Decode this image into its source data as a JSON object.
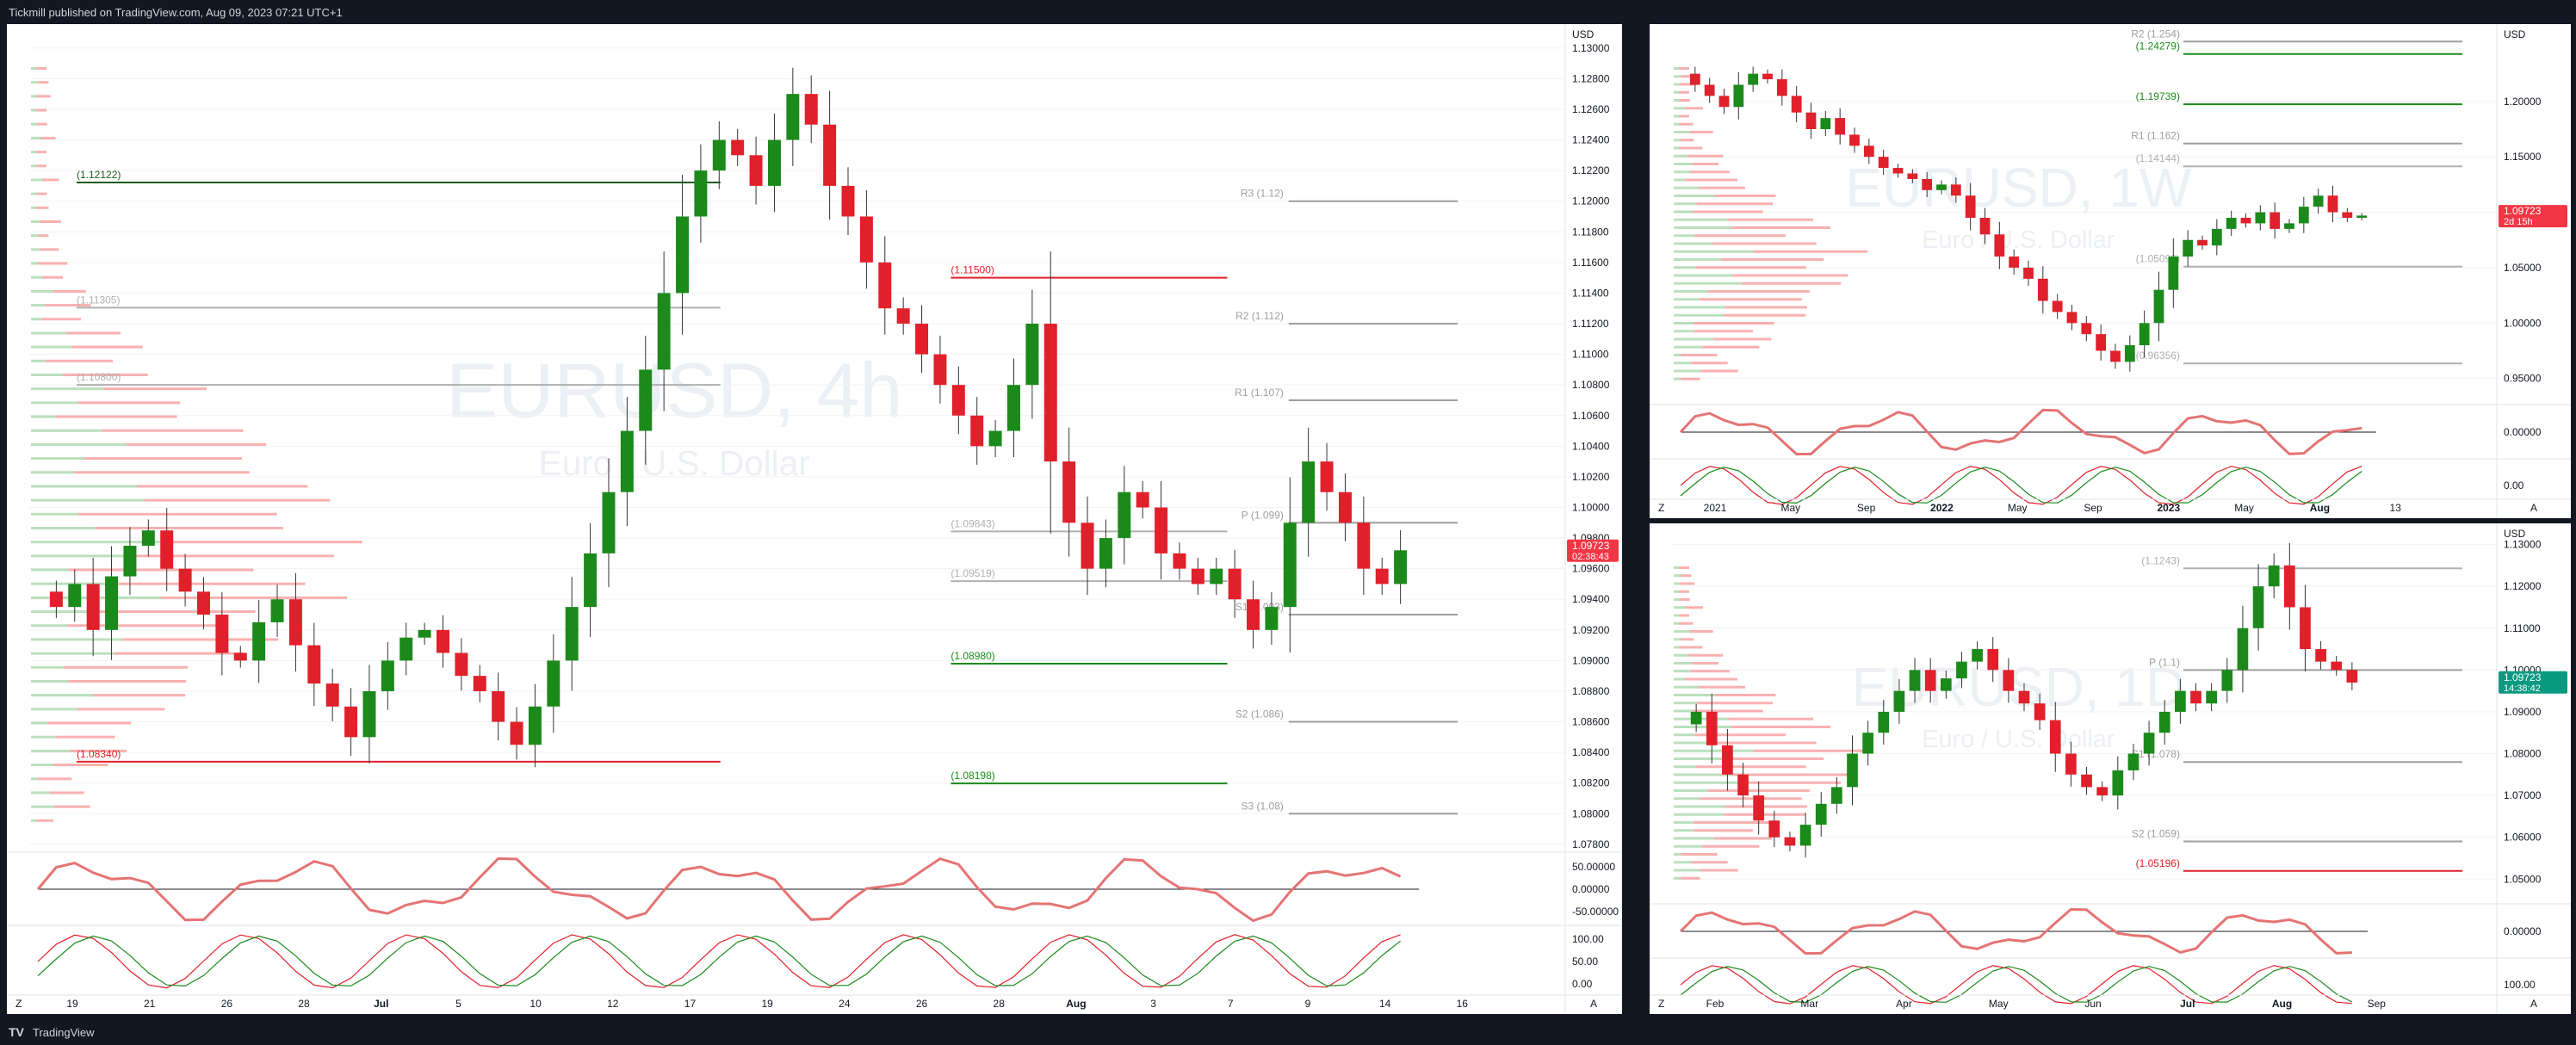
{
  "header": {
    "publisher_line": "Tickmill published on TradingView.com, Aug 09, 2023 07:21 UTC+1"
  },
  "footer": {
    "brand": "TradingView",
    "logo": "tradingview-logo-icon"
  },
  "colors": {
    "up": "#089981",
    "down": "#f23645",
    "candle_up": "#1b8a1b",
    "candle_down": "#e0202a",
    "pivot": "#9e9e9e",
    "accent": "#2962ff"
  },
  "chart_data": [
    {
      "id": "main-4h",
      "type": "candlestick",
      "watermark": {
        "symbol": "EURUSD, 4h",
        "name": "Euro / U.S. Dollar"
      },
      "currency": "USD",
      "last_price": "1.09723",
      "countdown": "02:38:43",
      "y_ticks": [
        "1.13000",
        "1.12800",
        "1.12600",
        "1.12400",
        "1.12200",
        "1.12000",
        "1.11800",
        "1.11600",
        "1.11400",
        "1.11200",
        "1.11000",
        "1.10800",
        "1.10600",
        "1.10400",
        "1.10200",
        "1.10000",
        "1.09800",
        "1.09600",
        "1.09400",
        "1.09200",
        "1.09000",
        "1.08800",
        "1.08600",
        "1.08400",
        "1.08200",
        "1.08000",
        "1.07800"
      ],
      "ylim": [
        1.0776,
        1.131
      ],
      "x_ticks": [
        "19",
        "21",
        "26",
        "28",
        "Jul",
        "5",
        "10",
        "12",
        "17",
        "19",
        "24",
        "26",
        "28",
        "Aug",
        "3",
        "7",
        "9",
        "14",
        "16"
      ],
      "price_path": [
        1.0945,
        1.0935,
        1.095,
        1.092,
        1.0955,
        1.0975,
        1.0985,
        1.096,
        1.0945,
        1.093,
        1.0905,
        1.09,
        1.0925,
        1.094,
        1.091,
        1.0885,
        1.087,
        1.085,
        1.088,
        1.09,
        1.0915,
        1.092,
        1.0905,
        1.089,
        1.088,
        1.086,
        1.0845,
        1.087,
        1.09,
        1.0935,
        1.097,
        1.101,
        1.105,
        1.109,
        1.114,
        1.119,
        1.122,
        1.124,
        1.123,
        1.121,
        1.124,
        1.127,
        1.125,
        1.121,
        1.119,
        1.116,
        1.113,
        1.112,
        1.11,
        1.108,
        1.106,
        1.104,
        1.105,
        1.108,
        1.112,
        1.103,
        1.099,
        1.096,
        1.098,
        1.101,
        1.1,
        1.097,
        1.096,
        1.095,
        1.096,
        1.094,
        1.092,
        1.0935,
        1.099,
        1.103,
        1.101,
        1.099,
        1.096,
        1.095,
        1.0972
      ],
      "levels": [
        {
          "label": "(1.12122)",
          "value": 1.12122,
          "color": "#1b5e20",
          "side": "left"
        },
        {
          "label": "(1.11305)",
          "value": 1.11305,
          "color": "#b0b0b0",
          "side": "left"
        },
        {
          "label": "(1.10800)",
          "value": 1.108,
          "color": "#b0b0b0",
          "side": "left"
        },
        {
          "label": "(1.08340)",
          "value": 1.0834,
          "color": "#e0202a",
          "side": "left"
        },
        {
          "label": "(1.11500)",
          "value": 1.115,
          "color": "#e0202a",
          "side": "mid"
        },
        {
          "label": "(1.09843)",
          "value": 1.09843,
          "color": "#b0b0b0",
          "side": "mid"
        },
        {
          "label": "(1.09519)",
          "value": 1.09519,
          "color": "#b0b0b0",
          "side": "mid"
        },
        {
          "label": "(1.08980)",
          "value": 1.0898,
          "color": "#1b8a1b",
          "side": "mid"
        },
        {
          "label": "(1.08198)",
          "value": 1.08198,
          "color": "#1b8a1b",
          "side": "mid"
        },
        {
          "label": "R3 (1.12)",
          "value": 1.12,
          "color": "#9e9e9e",
          "side": "right"
        },
        {
          "label": "R2 (1.112)",
          "value": 1.112,
          "color": "#9e9e9e",
          "side": "right"
        },
        {
          "label": "R1 (1.107)",
          "value": 1.107,
          "color": "#9e9e9e",
          "side": "right"
        },
        {
          "label": "P (1.099)",
          "value": 1.099,
          "color": "#9e9e9e",
          "side": "right"
        },
        {
          "label": "S1 (1.093)",
          "value": 1.093,
          "color": "#9e9e9e",
          "side": "right"
        },
        {
          "label": "S2 (1.086)",
          "value": 1.086,
          "color": "#9e9e9e",
          "side": "right"
        },
        {
          "label": "S3 (1.08)",
          "value": 1.08,
          "color": "#9e9e9e",
          "side": "right"
        }
      ],
      "osc1_ticks": [
        "50.00000",
        "0.00000",
        "-50.00000"
      ],
      "osc2_ticks": [
        "100.00",
        "50.00",
        "0.00"
      ]
    },
    {
      "id": "weekly",
      "type": "candlestick",
      "watermark": {
        "symbol": "EURUSD, 1W",
        "name": "Euro / U.S. Dollar"
      },
      "currency": "USD",
      "last_price": "1.09723",
      "countdown": "2d 15h",
      "y_ticks": [
        "1.20000",
        "1.15000",
        "1.10000",
        "1.05000",
        "1.00000",
        "0.95000"
      ],
      "ylim": [
        0.928,
        1.262
      ],
      "x_ticks": [
        "2021",
        "May",
        "Sep",
        "2022",
        "May",
        "Sep",
        "2023",
        "May",
        "Aug",
        "13"
      ],
      "price_path": [
        1.225,
        1.215,
        1.205,
        1.195,
        1.215,
        1.225,
        1.22,
        1.205,
        1.19,
        1.175,
        1.185,
        1.17,
        1.16,
        1.15,
        1.14,
        1.135,
        1.13,
        1.12,
        1.125,
        1.115,
        1.095,
        1.08,
        1.06,
        1.05,
        1.04,
        1.02,
        1.01,
        1.0,
        0.99,
        0.975,
        0.965,
        0.98,
        1.0,
        1.03,
        1.06,
        1.075,
        1.07,
        1.085,
        1.095,
        1.09,
        1.1,
        1.085,
        1.09,
        1.105,
        1.115,
        1.1,
        1.095,
        1.097
      ],
      "levels": [
        {
          "label": "R2 (1.254)",
          "value": 1.254,
          "color": "#9e9e9e"
        },
        {
          "label": "(1.24279)",
          "value": 1.24279,
          "color": "#1b8a1b"
        },
        {
          "label": "(1.19739)",
          "value": 1.19739,
          "color": "#1b8a1b"
        },
        {
          "label": "R1 (1.162)",
          "value": 1.162,
          "color": "#9e9e9e"
        },
        {
          "label": "(1.14144)",
          "value": 1.14144,
          "color": "#b0b0b0"
        },
        {
          "label": "(1.05093)",
          "value": 1.05093,
          "color": "#b0b0b0"
        },
        {
          "label": "(0.96356)",
          "value": 0.96356,
          "color": "#b0b0b0"
        }
      ],
      "osc1_ticks": [
        "0.00000"
      ],
      "osc2_ticks": [
        "0.00"
      ]
    },
    {
      "id": "daily",
      "type": "candlestick",
      "watermark": {
        "symbol": "EURUSD, 1D",
        "name": "Euro / U.S. Dollar"
      },
      "currency": "USD",
      "last_price": "1.09723",
      "countdown": "14:38:42",
      "y_ticks": [
        "1.13000",
        "1.12000",
        "1.11000",
        "1.10000",
        "1.09000",
        "1.08000",
        "1.07000",
        "1.06000",
        "1.05000"
      ],
      "ylim": [
        1.0445,
        1.133
      ],
      "x_ticks": [
        "Feb",
        "Mar",
        "Apr",
        "May",
        "Jun",
        "Jul",
        "Aug",
        "Sep"
      ],
      "price_path": [
        1.087,
        1.09,
        1.082,
        1.075,
        1.07,
        1.064,
        1.06,
        1.058,
        1.063,
        1.068,
        1.072,
        1.08,
        1.085,
        1.09,
        1.095,
        1.1,
        1.095,
        1.098,
        1.102,
        1.105,
        1.1,
        1.095,
        1.092,
        1.088,
        1.08,
        1.075,
        1.072,
        1.07,
        1.076,
        1.08,
        1.085,
        1.09,
        1.095,
        1.092,
        1.095,
        1.1,
        1.11,
        1.12,
        1.125,
        1.115,
        1.105,
        1.102,
        1.1,
        1.097
      ],
      "levels": [
        {
          "label": "(1.1243)",
          "value": 1.1243,
          "color": "#b0b0b0"
        },
        {
          "label": "P (1.1)",
          "value": 1.1,
          "color": "#9e9e9e"
        },
        {
          "label": "S1 (1.078)",
          "value": 1.078,
          "color": "#9e9e9e"
        },
        {
          "label": "S2 (1.059)",
          "value": 1.059,
          "color": "#9e9e9e"
        },
        {
          "label": "(1.05196)",
          "value": 1.05196,
          "color": "#e0202a"
        }
      ],
      "osc1_ticks": [
        "0.00000"
      ],
      "osc2_ticks": [
        "100.00"
      ]
    }
  ]
}
